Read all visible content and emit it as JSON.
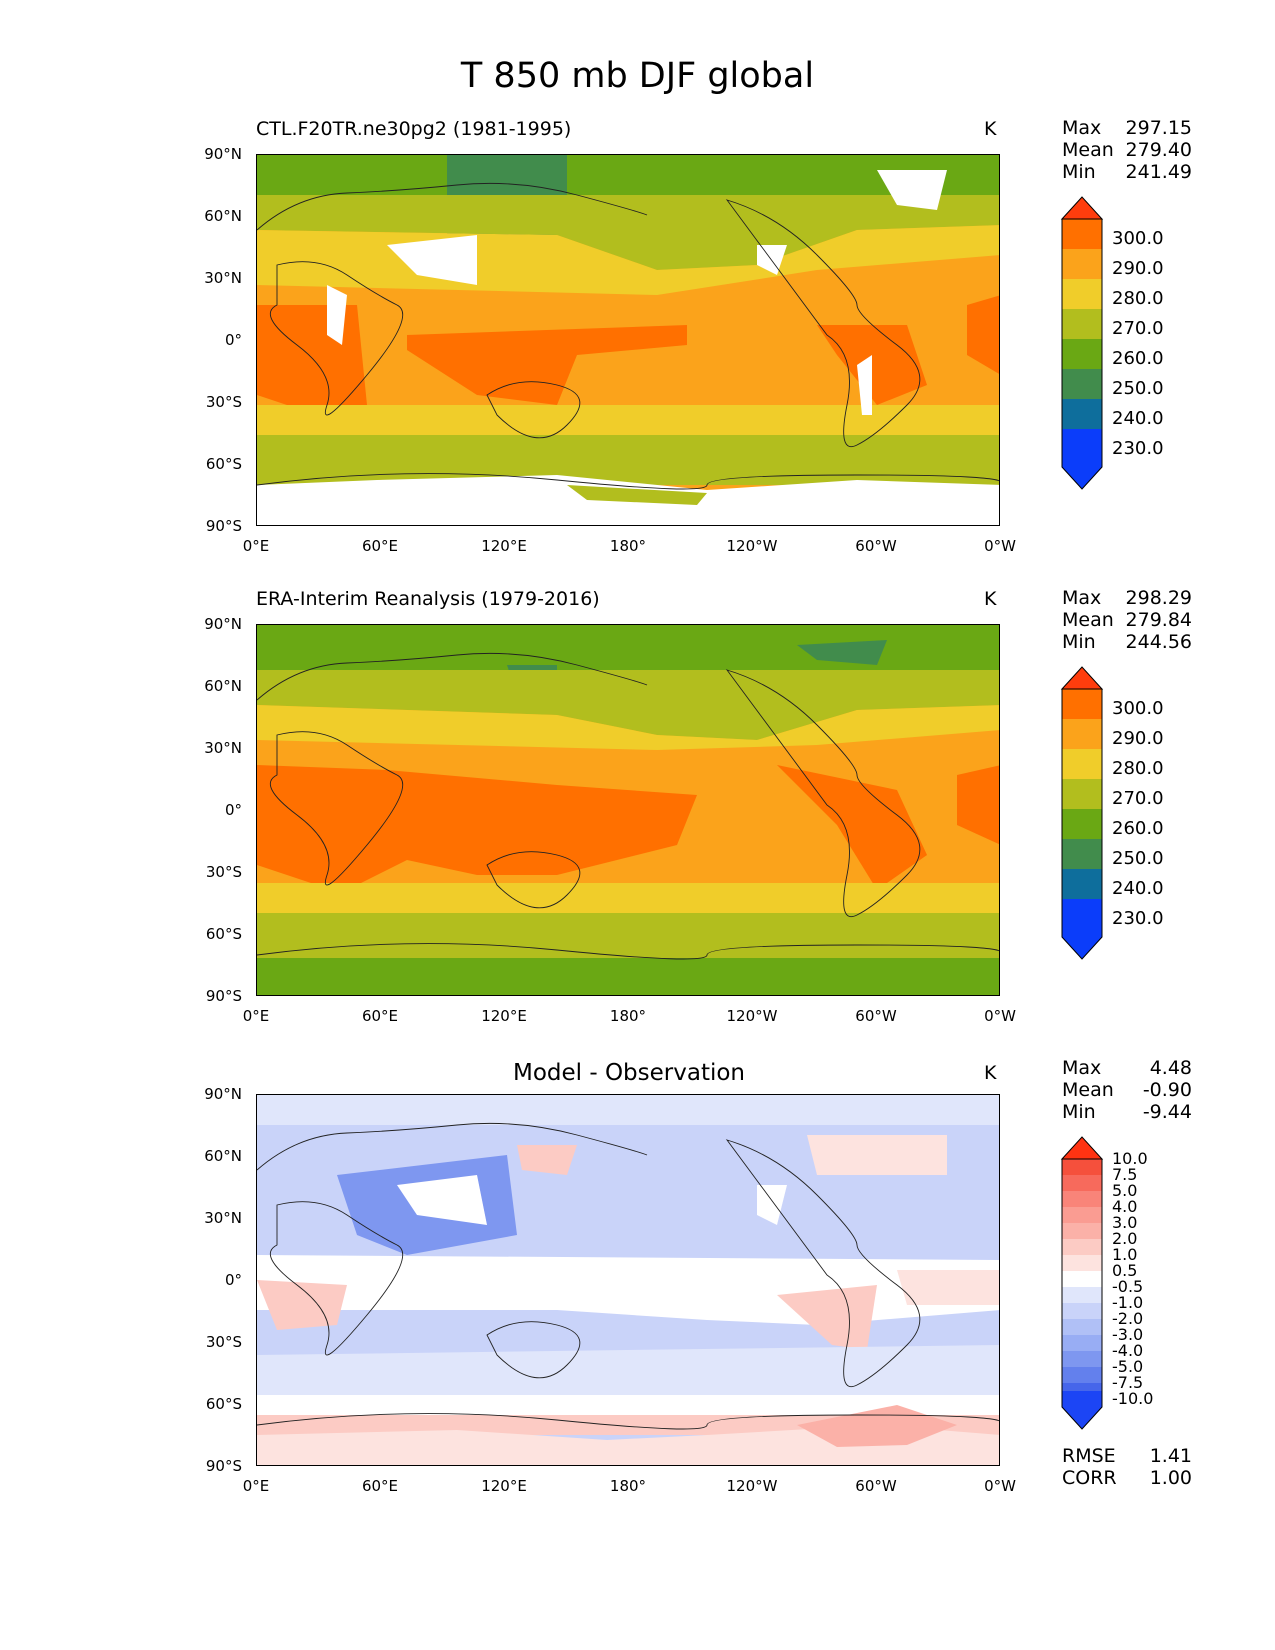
{
  "title": "T 850 mb DJF global",
  "axes": {
    "lat_ticks": [
      "90°N",
      "60°N",
      "30°N",
      "0°",
      "30°S",
      "60°S",
      "90°S"
    ],
    "lon_ticks": [
      "0°E",
      "60°E",
      "120°E",
      "180°",
      "120°W",
      "60°W",
      "0°W"
    ]
  },
  "panels": [
    {
      "title": "CTL.F20TR.ne30pg2 (1981-1995)",
      "units": "K",
      "stats": [
        {
          "label": "Max",
          "value": "297.15"
        },
        {
          "label": "Mean",
          "value": "279.40"
        },
        {
          "label": "Min",
          "value": "241.49"
        }
      ]
    },
    {
      "title": "ERA-Interim Reanalysis (1979-2016)",
      "units": "K",
      "stats": [
        {
          "label": "Max",
          "value": "298.29"
        },
        {
          "label": "Mean",
          "value": "279.84"
        },
        {
          "label": "Min",
          "value": "244.56"
        }
      ]
    },
    {
      "title": "Model - Observation",
      "units": "K",
      "stats": [
        {
          "label": "Max",
          "value": "4.48"
        },
        {
          "label": "Mean",
          "value": "-0.90"
        },
        {
          "label": "Min",
          "value": "-9.44"
        }
      ],
      "metrics": [
        {
          "label": "RMSE",
          "value": "1.41"
        },
        {
          "label": "CORR",
          "value": "1.00"
        }
      ]
    }
  ],
  "colorbar_abs": {
    "labels": [
      "300.0",
      "290.0",
      "280.0",
      "270.0",
      "260.0",
      "250.0",
      "240.0",
      "230.0"
    ],
    "colors": [
      "#ff3d0d",
      "#ff7000",
      "#fba31b",
      "#f0cd2a",
      "#b2be1e",
      "#6aa814",
      "#418c4c",
      "#0e6e9c",
      "#0b3dfa"
    ]
  },
  "colorbar_diff": {
    "labels": [
      "10.0",
      "7.5",
      "5.0",
      "4.0",
      "3.0",
      "2.0",
      "1.0",
      "0.5",
      "-0.5",
      "-1.0",
      "-2.0",
      "-3.0",
      "-4.0",
      "-5.0",
      "-7.5",
      "-10.0"
    ],
    "colors": [
      "#ff3312",
      "#f5503c",
      "#f76a5c",
      "#f98479",
      "#fa9c92",
      "#fbb1a8",
      "#fccbc4",
      "#fde3df",
      "#ffffff",
      "#e0e6fb",
      "#c9d3f9",
      "#b0c0f6",
      "#98adf4",
      "#7e97f0",
      "#6380ed",
      "#4666ea",
      "#1c45f5"
    ]
  }
}
